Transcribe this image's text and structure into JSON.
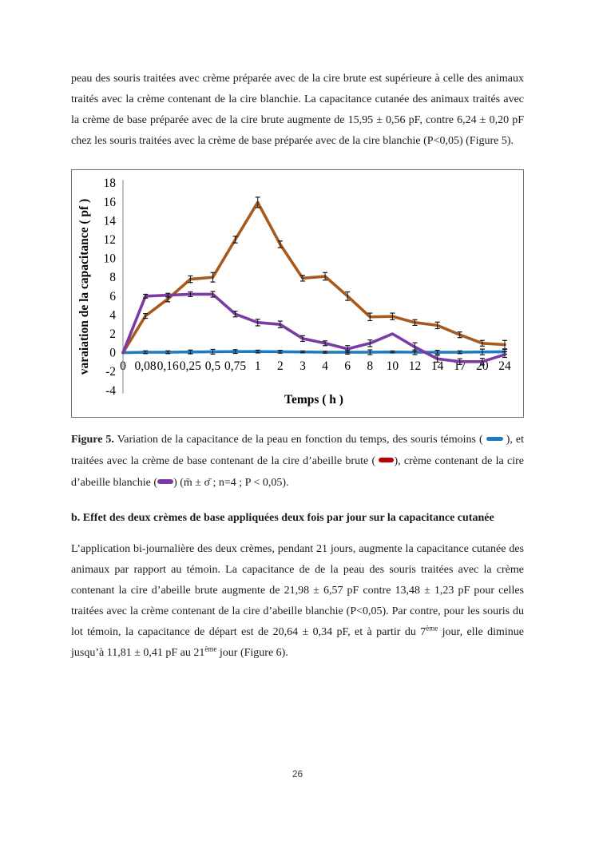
{
  "page": {
    "number": "26"
  },
  "paragraph1": "peau des souris traitées avec crème préparée avec de la cire brute est supérieure à celle des animaux traités avec la crème contenant de la cire blanchie. La capacitance cutanée des animaux traités avec la crème de base préparée avec de la cire brute augmente de 15,95 ± 0,56 pF, contre 6,24 ± 0,20 pF chez les souris traitées avec la crème de base préparée avec de la cire blanchie (P<0,05) (Figure 5).",
  "figure_caption": {
    "label": "Figure 5.",
    "t1": " Variation de la capacitance de la peau en fonction du temps, des souris témoins ( ",
    "t2": " ), et traitées avec la crème de base contenant de la cire d’abeille brute ( ",
    "t3": "), crème contenant de la cire d’abeille blanchie (",
    "t4": ") (m̄ ± σ̄ ; n=4 ; P < 0,05)."
  },
  "section_b": {
    "heading": "b. Effet des deux crèmes de base appliquées deux fois par jour sur la capacitance cutanée"
  },
  "paragraph2": {
    "t1": "L’application bi-journalière des deux crèmes, pendant 21 jours, augmente la capacitance cutanée des animaux par rapport au témoin. La capacitance de de la peau des souris traitées avec la crème contenant la cire d’abeille brute augmente de 21,98 ± 6,57 pF contre 13,48 ± 1,23 pF pour celles traitées avec la crème contenant de la cire d’abeille blanchie (P<0,05). Par contre, pour les souris du lot témoin, la capacitance de départ est de 20,64 ± 0,34 pF, et à partir du 7",
    "sup1": "ème",
    "t2": " jour, elle diminue jusqu’à 11,81 ± 0,41 pF au 21",
    "sup2": "ème",
    "t3": "  jour (Figure 6)."
  },
  "colors": {
    "temoin": "#1F7BC1",
    "brute_line": "#A85A1E",
    "brute_swatch": "#C00000",
    "blanchie": "#7A3BA5",
    "axis": "#808080",
    "error_bar": "#111111"
  },
  "chart_data": {
    "type": "line",
    "title": "",
    "xlabel": "Temps ( h )",
    "ylabel": "varaiation de la capacitance ( pf )",
    "ylim": [
      -4,
      18
    ],
    "ytick_step": 2,
    "grid": false,
    "legend_position": "none",
    "categories": [
      "0",
      "0,08",
      "0,16",
      "0,25",
      "0,5",
      "0,75",
      "1",
      "2",
      "3",
      "4",
      "6",
      "8",
      "10",
      "12",
      "14",
      "17",
      "20",
      "24"
    ],
    "series": [
      {
        "name": "souris témoins",
        "color": "#1F7BC1",
        "values": [
          0,
          0.05,
          0.05,
          0.08,
          0.1,
          0.12,
          0.12,
          0.1,
          0.08,
          0.05,
          0.05,
          0.05,
          0.08,
          0.05,
          0.05,
          0.05,
          0.08,
          0.1
        ],
        "errors": [
          0,
          0.15,
          0.15,
          0.2,
          0.25,
          0.2,
          0.15,
          0.15,
          0.1,
          0.1,
          0.2,
          0.25,
          0.1,
          0.25,
          0.2,
          0.15,
          0.3,
          0.25
        ]
      },
      {
        "name": "crème de base à la cire d'abeille brute",
        "color": "#A85A1E",
        "values": [
          0,
          3.9,
          5.7,
          7.8,
          8.0,
          12.0,
          15.95,
          11.5,
          7.9,
          8.1,
          6.0,
          3.8,
          3.85,
          3.2,
          2.9,
          1.9,
          1.0,
          0.85
        ],
        "errors": [
          0,
          0.25,
          0.3,
          0.35,
          0.5,
          0.35,
          0.55,
          0.35,
          0.3,
          0.4,
          0.45,
          0.4,
          0.35,
          0.3,
          0.35,
          0.3,
          0.3,
          0.45
        ]
      },
      {
        "name": "crème de base à la cire d'abeille blanchie",
        "color": "#7A3BA5",
        "values": [
          0,
          6.0,
          6.1,
          6.2,
          6.2,
          4.1,
          3.2,
          3.0,
          1.5,
          1.0,
          0.4,
          1.0,
          2.0,
          0.6,
          -0.65,
          -0.95,
          -0.95,
          -0.2
        ],
        "errors": [
          0,
          0.2,
          0.2,
          0.25,
          0.3,
          0.3,
          0.35,
          0.35,
          0.3,
          0.25,
          0.35,
          0.35,
          0,
          0.45,
          0.35,
          0.3,
          0.35,
          0.3
        ]
      }
    ]
  }
}
